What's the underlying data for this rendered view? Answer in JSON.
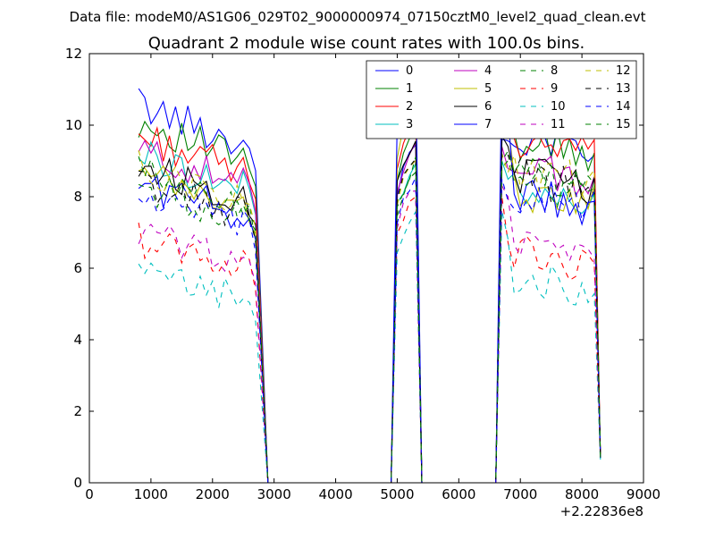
{
  "chart_data": {
    "type": "line",
    "suptitle": "Data file: modeM0/AS1G06_029T02_9000000974_07150cztM0_level2_quad_clean.evt",
    "title": "Quadrant 2 module wise count rates with 100.0s bins.",
    "xlabel": "",
    "ylabel": "",
    "x_offset_label": "+2.22836e8",
    "xlim": [
      0,
      9000
    ],
    "ylim": [
      0,
      12
    ],
    "xticks": [
      0,
      1000,
      2000,
      3000,
      4000,
      5000,
      6000,
      7000,
      8000,
      9000
    ],
    "yticks": [
      0,
      2,
      4,
      6,
      8,
      10,
      12
    ],
    "grid": false,
    "legend_position": "top-right",
    "segments": [
      {
        "x_start": 800,
        "x_end": 2700,
        "count": 20
      },
      {
        "x_start": 2900,
        "x_end": 4900,
        "count": 21
      },
      {
        "x_start": 5000,
        "x_end": 5400,
        "count": 5
      },
      {
        "x_start": 5500,
        "x_end": 6600,
        "count": 12
      },
      {
        "x_start": 6700,
        "x_end": 8200,
        "count": 16
      },
      {
        "x_start": 8300,
        "x_end": 8300,
        "count": 1
      }
    ],
    "series": [
      {
        "name": "0",
        "color": "#0000ff",
        "dash": "solid",
        "base1": 10.6,
        "base2": 9.8,
        "peak": 9.6,
        "end": 0.7
      },
      {
        "name": "1",
        "color": "#008000",
        "dash": "solid",
        "base1": 10.1,
        "base2": 9.6,
        "peak": 10.0,
        "end": 0.7
      },
      {
        "name": "2",
        "color": "#ff0000",
        "dash": "solid",
        "base1": 9.7,
        "base2": 9.5,
        "peak": 10.3,
        "end": 0.7
      },
      {
        "name": "3",
        "color": "#00bfbf",
        "dash": "solid",
        "base1": 9.2,
        "base2": 8.2,
        "peak": 9.0,
        "end": 0.65
      },
      {
        "name": "4",
        "color": "#bf00bf",
        "dash": "solid",
        "base1": 9.3,
        "base2": 8.8,
        "peak": 9.4,
        "end": 0.7
      },
      {
        "name": "5",
        "color": "#bfbf00",
        "dash": "solid",
        "base1": 8.6,
        "base2": 8.2,
        "peak": 10.8,
        "end": 0.7
      },
      {
        "name": "6",
        "color": "#000000",
        "dash": "solid",
        "base1": 8.9,
        "base2": 8.7,
        "peak": 9.7,
        "end": 0.7
      },
      {
        "name": "7",
        "color": "#0000ff",
        "dash": "solid",
        "base1": 8.4,
        "base2": 8.1,
        "peak": 11.7,
        "end": 0.7
      },
      {
        "name": "8",
        "color": "#008000",
        "dash": "dashed",
        "base1": 8.3,
        "base2": 8.5,
        "peak": 8.8,
        "end": 0.7
      },
      {
        "name": "9",
        "color": "#ff0000",
        "dash": "dashed",
        "base1": 6.8,
        "base2": 6.5,
        "peak": 8.0,
        "end": 0.7
      },
      {
        "name": "10",
        "color": "#00bfbf",
        "dash": "dashed",
        "base1": 5.8,
        "base2": 5.8,
        "peak": 7.6,
        "end": 0.6
      },
      {
        "name": "11",
        "color": "#bf00bf",
        "dash": "dashed",
        "base1": 7.0,
        "base2": 6.8,
        "peak": 8.3,
        "end": 0.7
      },
      {
        "name": "12",
        "color": "#bfbf00",
        "dash": "dashed",
        "base1": 8.8,
        "base2": 8.8,
        "peak": 9.2,
        "end": 0.7
      },
      {
        "name": "13",
        "color": "#000000",
        "dash": "dashed",
        "base1": 8.4,
        "base2": 8.6,
        "peak": 9.2,
        "end": 0.7
      },
      {
        "name": "14",
        "color": "#0000ff",
        "dash": "dashed",
        "base1": 8.0,
        "base2": 8.1,
        "peak": 8.5,
        "end": 0.7
      },
      {
        "name": "15",
        "color": "#008000",
        "dash": "dashed",
        "base1": 8.7,
        "base2": 8.7,
        "peak": 9.0,
        "end": 0.7
      }
    ]
  }
}
